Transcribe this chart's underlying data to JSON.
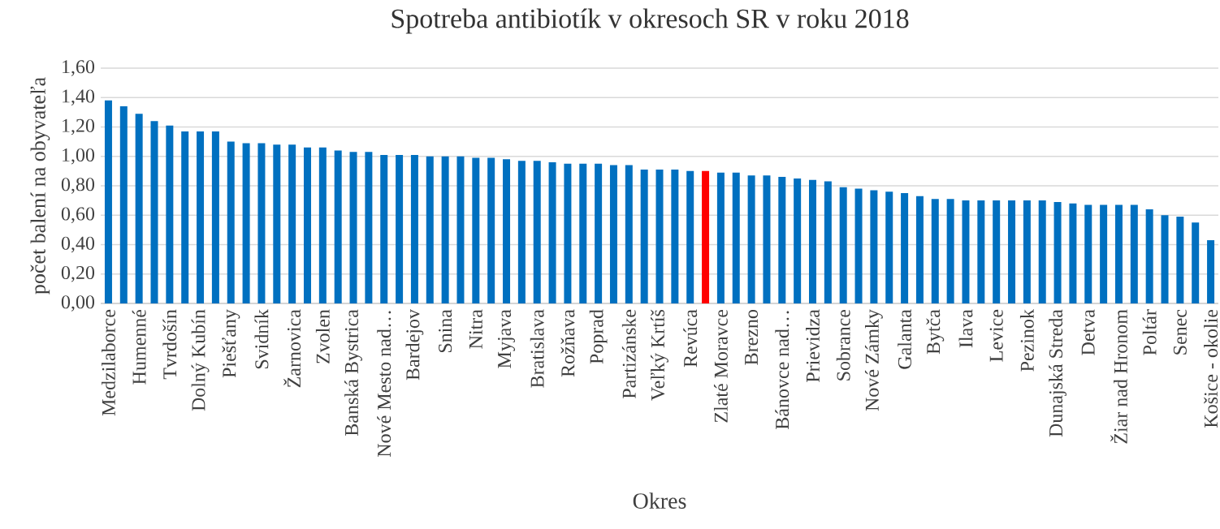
{
  "chart_data": {
    "type": "bar",
    "title": "Spotreba antibiotík v okresoch SR v roku 2018",
    "xlabel": "Okres",
    "ylabel": "počet balení na obyvateľa",
    "categories": [
      "Medzilaborce",
      null,
      "Humenné",
      null,
      "Tvrdošín",
      null,
      "Dolný Kubín",
      null,
      "Piešťany",
      null,
      "Svidník",
      null,
      "Žarnovica",
      null,
      "Zvolen",
      null,
      "Banská Bystrica",
      null,
      "Nové Mesto nad…",
      null,
      "Bardejov",
      null,
      "Snina",
      null,
      "Nitra",
      null,
      "Myjava",
      null,
      "Bratislava",
      null,
      "Rožňava",
      null,
      "Poprad",
      null,
      "Partizánske",
      null,
      "Veľký Krtíš",
      null,
      "Revúca",
      null,
      "Zlaté Moravce",
      null,
      "Brezno",
      null,
      "Bánovce nad…",
      null,
      "Prievidza",
      null,
      "Sobrance",
      null,
      "Nové Zámky",
      null,
      "Galanta",
      null,
      "Bytča",
      null,
      "Ilava",
      null,
      "Levice",
      null,
      "Pezinok",
      null,
      "Dunajská Streda",
      null,
      "Detva",
      null,
      "Žiar nad Hronom",
      null,
      "Poltár",
      null,
      "Senec",
      null,
      "Košice - okolie"
    ],
    "values": [
      1.38,
      1.34,
      1.29,
      1.24,
      1.21,
      1.17,
      1.17,
      1.17,
      1.1,
      1.09,
      1.09,
      1.08,
      1.08,
      1.06,
      1.06,
      1.04,
      1.03,
      1.03,
      1.01,
      1.01,
      1.01,
      1.0,
      1.0,
      1.0,
      0.99,
      0.99,
      0.98,
      0.97,
      0.97,
      0.96,
      0.95,
      0.95,
      0.95,
      0.94,
      0.94,
      0.91,
      0.91,
      0.91,
      0.9,
      0.9,
      0.89,
      0.89,
      0.87,
      0.87,
      0.86,
      0.85,
      0.84,
      0.83,
      0.79,
      0.78,
      0.77,
      0.76,
      0.75,
      0.73,
      0.71,
      0.71,
      0.7,
      0.7,
      0.7,
      0.7,
      0.7,
      0.7,
      0.69,
      0.68,
      0.67,
      0.67,
      0.67,
      0.67,
      0.64,
      0.6,
      0.59,
      0.55,
      0.43
    ],
    "colors": [
      "#0070c0",
      "#0070c0",
      "#0070c0",
      "#0070c0",
      "#0070c0",
      "#0070c0",
      "#0070c0",
      "#0070c0",
      "#0070c0",
      "#0070c0",
      "#0070c0",
      "#0070c0",
      "#0070c0",
      "#0070c0",
      "#0070c0",
      "#0070c0",
      "#0070c0",
      "#0070c0",
      "#0070c0",
      "#0070c0",
      "#0070c0",
      "#0070c0",
      "#0070c0",
      "#0070c0",
      "#0070c0",
      "#0070c0",
      "#0070c0",
      "#0070c0",
      "#0070c0",
      "#0070c0",
      "#0070c0",
      "#0070c0",
      "#0070c0",
      "#0070c0",
      "#0070c0",
      "#0070c0",
      "#0070c0",
      "#0070c0",
      "#0070c0",
      "#ff0000",
      "#0070c0",
      "#0070c0",
      "#0070c0",
      "#0070c0",
      "#0070c0",
      "#0070c0",
      "#0070c0",
      "#0070c0",
      "#0070c0",
      "#0070c0",
      "#0070c0",
      "#0070c0",
      "#0070c0",
      "#0070c0",
      "#0070c0",
      "#0070c0",
      "#0070c0",
      "#0070c0",
      "#0070c0",
      "#0070c0",
      "#0070c0",
      "#0070c0",
      "#0070c0",
      "#0070c0",
      "#0070c0",
      "#0070c0",
      "#0070c0",
      "#0070c0",
      "#0070c0",
      "#0070c0",
      "#0070c0",
      "#0070c0",
      "#0070c0"
    ],
    "ylim": [
      0,
      1.6
    ],
    "yticks": [
      {
        "value": 0,
        "label": "0,00"
      },
      {
        "value": 0.2,
        "label": "0,20"
      },
      {
        "value": 0.4,
        "label": "0,40"
      },
      {
        "value": 0.6,
        "label": "0,60"
      },
      {
        "value": 0.8,
        "label": "0,80"
      },
      {
        "value": 1.0,
        "label": "1,00"
      },
      {
        "value": 1.2,
        "label": "1,20"
      },
      {
        "value": 1.4,
        "label": "1,40"
      },
      {
        "value": 1.6,
        "label": "1,60"
      }
    ],
    "grid": "y"
  }
}
